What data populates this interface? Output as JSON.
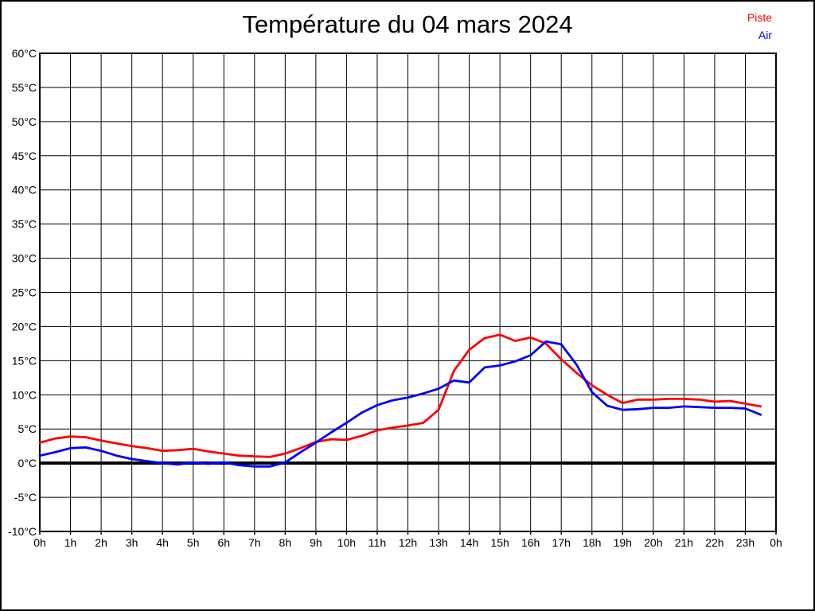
{
  "page": {
    "background": "#ffffff",
    "frame_color": "#000000"
  },
  "chart_data": {
    "type": "line",
    "title": "Température du 04 mars 2024",
    "grid": true,
    "legend_position": "top-right",
    "x_hours": [
      0,
      0.5,
      1,
      1.5,
      2,
      2.5,
      3,
      3.5,
      4,
      4.5,
      5,
      5.5,
      6,
      6.5,
      7,
      7.5,
      8,
      8.5,
      9,
      9.5,
      10,
      10.5,
      11,
      11.5,
      12,
      12.5,
      13,
      13.5,
      14,
      14.5,
      15,
      15.5,
      16,
      16.5,
      17,
      17.5,
      18,
      18.5,
      19,
      19.5,
      20,
      20.5,
      21,
      21.5,
      22,
      22.5,
      23,
      23.5
    ],
    "series": [
      {
        "name": "Piste",
        "color": "#ff0000",
        "values": [
          3.0,
          3.6,
          3.9,
          3.8,
          3.3,
          2.9,
          2.5,
          2.2,
          1.8,
          1.9,
          2.1,
          1.7,
          1.4,
          1.1,
          1.0,
          0.9,
          1.4,
          2.2,
          3.1,
          3.5,
          3.4,
          4.0,
          4.8,
          5.2,
          5.5,
          5.9,
          7.8,
          13.5,
          16.6,
          18.3,
          18.8,
          17.9,
          18.4,
          17.5,
          15.2,
          13.2,
          11.4,
          10.0,
          8.8,
          9.3,
          9.3,
          9.4,
          9.4,
          9.3,
          9.0,
          9.1,
          8.7,
          8.3
        ]
      },
      {
        "name": "Air",
        "color": "#0000ff",
        "values": [
          1.1,
          1.6,
          2.2,
          2.3,
          1.8,
          1.1,
          0.6,
          0.3,
          0.0,
          -0.2,
          0.1,
          -0.1,
          0.1,
          -0.3,
          -0.5,
          -0.5,
          0.1,
          1.6,
          3.0,
          4.5,
          5.9,
          7.4,
          8.5,
          9.2,
          9.6,
          10.2,
          10.9,
          12.1,
          11.8,
          14.0,
          14.3,
          14.9,
          15.8,
          17.8,
          17.4,
          14.4,
          10.4,
          8.4,
          7.8,
          7.9,
          8.1,
          8.1,
          8.3,
          8.2,
          8.1,
          8.1,
          8.0,
          7.1
        ]
      }
    ],
    "x_axis": {
      "min": 0,
      "max": 24,
      "tick_values": [
        0,
        1,
        2,
        3,
        4,
        5,
        6,
        7,
        8,
        9,
        10,
        11,
        12,
        13,
        14,
        15,
        16,
        17,
        18,
        19,
        20,
        21,
        22,
        23,
        24
      ],
      "tick_labels": [
        "0h",
        "1h",
        "2h",
        "3h",
        "4h",
        "5h",
        "6h",
        "7h",
        "8h",
        "9h",
        "10h",
        "11h",
        "12h",
        "13h",
        "14h",
        "15h",
        "16h",
        "17h",
        "18h",
        "19h",
        "20h",
        "21h",
        "22h",
        "23h",
        "0h"
      ]
    },
    "y_axis": {
      "min": -10,
      "max": 60,
      "tick_values": [
        60,
        55,
        50,
        45,
        40,
        35,
        30,
        25,
        20,
        15,
        10,
        5,
        0,
        -5,
        -10
      ],
      "tick_labels": [
        "60°C",
        "55°C",
        "50°C",
        "45°C",
        "40°C",
        "35°C",
        "30°C",
        "25°C",
        "20°C",
        "15°C",
        "10°C",
        "5°C",
        "0°C",
        "-5°C",
        "-10°C"
      ]
    },
    "zero_line_value": 0,
    "axis_color": "#000000",
    "grid_color": "#000000"
  }
}
